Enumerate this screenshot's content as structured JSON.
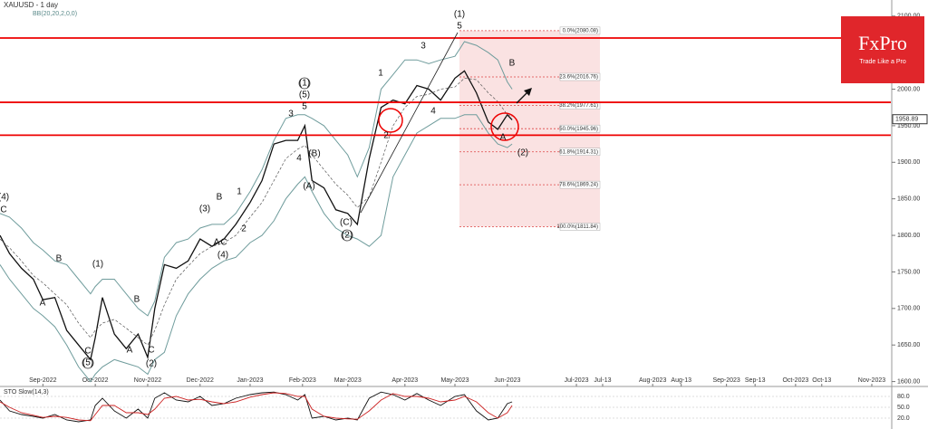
{
  "chart_data": {
    "type": "line",
    "title": "XAUUSD - 1 day",
    "indicator": "BB(20,20,2,0,0)",
    "x": [
      0,
      4,
      9,
      14,
      18,
      23,
      28,
      33,
      38,
      40,
      43,
      48,
      53,
      58,
      62,
      65,
      69,
      74,
      79,
      84,
      89,
      94,
      99,
      105,
      110,
      115,
      120,
      125,
      128,
      131,
      136,
      141,
      146,
      150,
      155,
      160,
      165,
      170,
      175,
      180,
      185,
      191,
      195,
      200,
      205,
      209,
      213,
      215
    ],
    "series": [
      {
        "name": "Close",
        "color": "#111111",
        "values": [
          1800,
          1775,
          1755,
          1740,
          1712,
          1715,
          1670,
          1650,
          1630,
          1660,
          1715,
          1665,
          1645,
          1665,
          1633,
          1700,
          1760,
          1755,
          1765,
          1795,
          1785,
          1795,
          1815,
          1845,
          1875,
          1925,
          1930,
          1930,
          1950,
          1875,
          1865,
          1835,
          1830,
          1815,
          1905,
          1975,
          1985,
          1980,
          2005,
          2000,
          1985,
          2015,
          2025,
          1995,
          1955,
          1945,
          1965,
          1958
        ]
      },
      {
        "name": "BB upper",
        "color": "#6f9c9c",
        "values": [
          1830,
          1825,
          1810,
          1790,
          1780,
          1765,
          1760,
          1740,
          1720,
          1730,
          1740,
          1740,
          1720,
          1700,
          1690,
          1710,
          1770,
          1790,
          1795,
          1810,
          1815,
          1815,
          1830,
          1860,
          1890,
          1930,
          1960,
          1965,
          1965,
          1960,
          1950,
          1930,
          1910,
          1880,
          1920,
          2000,
          2020,
          2040,
          2040,
          2035,
          2040,
          2045,
          2065,
          2060,
          2050,
          2040,
          2010,
          2000
        ]
      },
      {
        "name": "BB middle",
        "color": "#555555",
        "values": [
          1795,
          1783,
          1765,
          1745,
          1735,
          1720,
          1705,
          1680,
          1660,
          1670,
          1680,
          1685,
          1673,
          1660,
          1650,
          1670,
          1705,
          1740,
          1758,
          1775,
          1785,
          1790,
          1800,
          1825,
          1845,
          1875,
          1905,
          1918,
          1923,
          1910,
          1890,
          1870,
          1855,
          1838,
          1853,
          1900,
          1950,
          1975,
          1990,
          1993,
          2000,
          2003,
          2015,
          2013,
          1995,
          1983,
          1965,
          1963
        ]
      },
      {
        "name": "BB lower",
        "color": "#6f9c9c",
        "values": [
          1760,
          1740,
          1720,
          1700,
          1690,
          1675,
          1650,
          1620,
          1600,
          1610,
          1620,
          1630,
          1625,
          1620,
          1610,
          1630,
          1640,
          1690,
          1720,
          1740,
          1755,
          1765,
          1770,
          1790,
          1800,
          1820,
          1850,
          1870,
          1880,
          1860,
          1830,
          1810,
          1800,
          1795,
          1785,
          1800,
          1880,
          1910,
          1940,
          1950,
          1960,
          1960,
          1965,
          1965,
          1940,
          1925,
          1920,
          1925
        ]
      }
    ],
    "xlim": [
      0,
      374
    ],
    "xticks": [
      {
        "value": 18,
        "label": "Sep-2022"
      },
      {
        "value": 40,
        "label": "Oct-2022"
      },
      {
        "value": 62,
        "label": "Nov-2022"
      },
      {
        "value": 84,
        "label": "Dec-2022"
      },
      {
        "value": 105,
        "label": "Jan-2023"
      },
      {
        "value": 127,
        "label": "Feb-2023"
      },
      {
        "value": 146,
        "label": "Mar-2023"
      },
      {
        "value": 170,
        "label": "Apr-2023"
      },
      {
        "value": 191,
        "label": "May-2023"
      },
      {
        "value": 213,
        "label": "Jun-2023"
      },
      {
        "value": 242,
        "label": "Jul-2023"
      },
      {
        "value": 253,
        "label": "Jul-13"
      },
      {
        "value": 274,
        "label": "Aug-2023"
      },
      {
        "value": 286,
        "label": "Aug-13"
      },
      {
        "value": 305,
        "label": "Sep-2023"
      },
      {
        "value": 317,
        "label": "Sep-13"
      },
      {
        "value": 334,
        "label": "Oct-2023"
      },
      {
        "value": 345,
        "label": "Oct-13"
      },
      {
        "value": 366,
        "label": "Nov-2023"
      }
    ],
    "ylim": [
      1597,
      2122
    ],
    "yticks": [
      {
        "value": 1600,
        "label": "1600.00"
      },
      {
        "value": 1650,
        "label": "1650.00"
      },
      {
        "value": 1700,
        "label": "1700.00"
      },
      {
        "value": 1750,
        "label": "1750.00"
      },
      {
        "value": 1800,
        "label": "1800.00"
      },
      {
        "value": 1850,
        "label": "1850.00"
      },
      {
        "value": 1900,
        "label": "1900.00"
      },
      {
        "value": 1950,
        "label": "1950.00"
      },
      {
        "value": 2000,
        "label": "2000.00"
      },
      {
        "value": 2050,
        "label": "2050.00"
      },
      {
        "value": 2100,
        "label": "2100.00"
      }
    ],
    "current_price": 1958.89,
    "levels": [
      2070,
      1982,
      1937
    ],
    "fib_levels": [
      {
        "value": 2080.08,
        "label": "0.0%(2080.08)"
      },
      {
        "value": 2016.76,
        "label": "23.6%(2016.76)"
      },
      {
        "value": 1977.61,
        "label": "38.2%(1977.61)"
      },
      {
        "value": 1945.96,
        "label": "50.0%(1945.96)"
      },
      {
        "value": 1914.31,
        "label": "61.8%(1914.31)"
      },
      {
        "value": 1869.24,
        "label": "78.6%(1869.24)"
      },
      {
        "value": 1811.84,
        "label": "100.0%(1811.84)"
      }
    ],
    "wave_labels": [
      "(4)",
      "C",
      "B",
      "A",
      "C",
      "(5)",
      "(1)",
      "B",
      "A",
      "C",
      "(2)",
      "(3)",
      "B",
      "A",
      "C",
      "(4)",
      "1",
      "2",
      "3",
      "(1)",
      "(5)",
      "5",
      "4",
      "(B)",
      "(A)",
      "(C)",
      "(2)",
      "1",
      "2",
      "3",
      "4",
      "(1)",
      "5",
      "B",
      "A",
      "(2)"
    ],
    "brand": "FxPro",
    "tagline": "Trade Like a Pro",
    "oscillator": {
      "title": "STO Slow(14,3)",
      "ylim": [
        0,
        100
      ],
      "yticks": [
        {
          "value": 20,
          "label": "20.0"
        },
        {
          "value": 50,
          "label": "50.0"
        },
        {
          "value": 80,
          "label": "80.0"
        }
      ],
      "series": [
        {
          "name": "%K",
          "color": "#111111",
          "values": [
            70,
            40,
            30,
            25,
            20,
            30,
            15,
            10,
            15,
            55,
            75,
            40,
            20,
            45,
            20,
            75,
            90,
            70,
            65,
            80,
            55,
            60,
            75,
            85,
            90,
            92,
            85,
            70,
            85,
            20,
            25,
            15,
            20,
            15,
            75,
            92,
            85,
            70,
            88,
            70,
            55,
            80,
            85,
            40,
            15,
            20,
            60,
            65
          ]
        },
        {
          "name": "%D",
          "color": "#cc2222",
          "values": [
            65,
            50,
            35,
            28,
            22,
            25,
            22,
            15,
            13,
            30,
            55,
            55,
            35,
            35,
            30,
            45,
            75,
            80,
            70,
            72,
            65,
            60,
            65,
            78,
            85,
            90,
            88,
            80,
            80,
            45,
            25,
            20,
            18,
            17,
            40,
            70,
            88,
            80,
            80,
            75,
            65,
            70,
            80,
            65,
            35,
            20,
            35,
            55
          ]
        }
      ]
    }
  }
}
